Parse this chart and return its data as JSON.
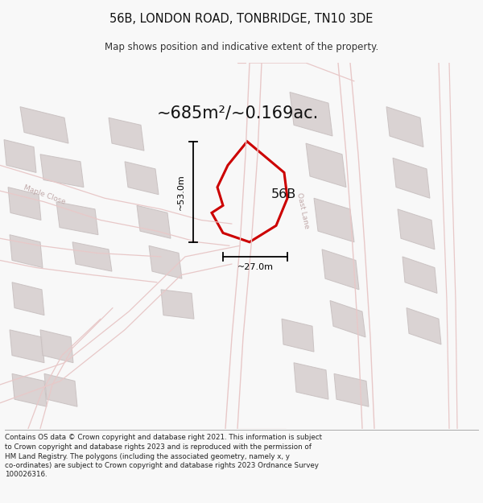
{
  "title": "56B, LONDON ROAD, TONBRIDGE, TN10 3DE",
  "subtitle": "Map shows position and indicative extent of the property.",
  "footer_line1": "Contains OS data © Crown copyright and database right 2021. This information is subject",
  "footer_line2": "to Crown copyright and database rights 2023 and is reproduced with the permission of",
  "footer_line3": "HM Land Registry. The polygons (including the associated geometry, namely x, y",
  "footer_line4": "co-ordinates) are subject to Crown copyright and database rights 2023 Ordnance Survey",
  "footer_line5": "100026316.",
  "area_label": "~685m²/~0.169ac.",
  "height_label": "~53.0m",
  "width_label": "~27.0m",
  "label_56b": "56B",
  "road_label": "Oast Lane",
  "street_label": "Maple Close",
  "map_bg": "#f7f5f3",
  "plot_color": "#cc0000",
  "light_road_color": "#e8c8c8",
  "building_color": "#d8d0d0",
  "building_edge": "#c8c0c0"
}
